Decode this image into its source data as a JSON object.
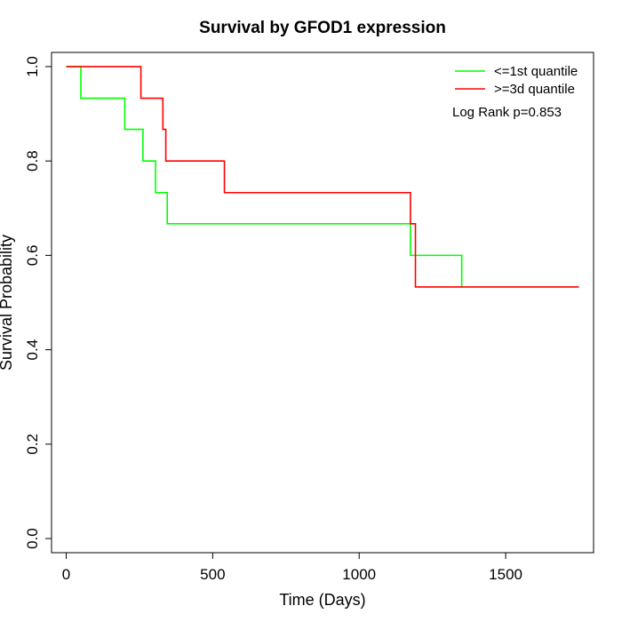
{
  "chart_data": {
    "type": "line",
    "title": "Survival by GFOD1 expression",
    "xlabel": "Time (Days)",
    "ylabel": "Survival Probability",
    "xlim": [
      -50,
      1800
    ],
    "ylim": [
      -0.03,
      1.03
    ],
    "xticks": [
      0,
      500,
      1000,
      1500
    ],
    "yticks": [
      0.0,
      0.2,
      0.4,
      0.6,
      0.8,
      1.0
    ],
    "xtick_labels": [
      "0",
      "500",
      "1000",
      "1500"
    ],
    "ytick_labels": [
      "0.0",
      "0.2",
      "0.4",
      "0.6",
      "0.8",
      "1.0"
    ],
    "grid": false,
    "legend_position": "top-right",
    "annotation": "Log Rank p=0.853",
    "series": [
      {
        "name": "<=1st quantile",
        "color": "#00ff00",
        "step_points": [
          [
            0,
            1.0
          ],
          [
            50,
            0.933
          ],
          [
            200,
            0.867
          ],
          [
            262,
            0.8
          ],
          [
            305,
            0.733
          ],
          [
            345,
            0.667
          ],
          [
            1175,
            0.6
          ],
          [
            1350,
            0.533
          ]
        ]
      },
      {
        "name": ">=3d quantile",
        "color": "#ff0000",
        "step_points": [
          [
            0,
            1.0
          ],
          [
            255,
            0.933
          ],
          [
            330,
            0.867
          ],
          [
            340,
            0.8
          ],
          [
            540,
            0.733
          ],
          [
            1175,
            0.667
          ],
          [
            1192,
            0.533
          ],
          [
            1750,
            0.533
          ]
        ]
      }
    ]
  }
}
